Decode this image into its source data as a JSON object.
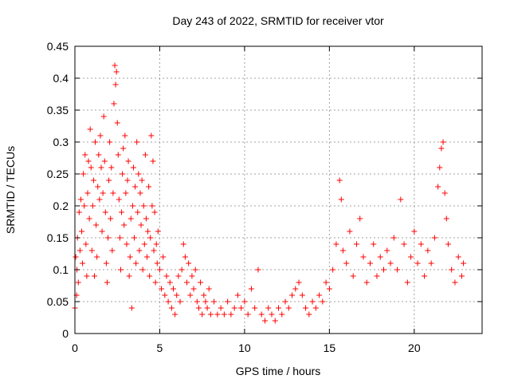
{
  "chart_data": {
    "type": "scatter",
    "title": "Day 243 of 2022, SRMTID for receiver vtor",
    "xlabel": "GPS time / hours",
    "ylabel": "SRMTID / TECUs",
    "xlim": [
      0,
      24
    ],
    "ylim": [
      0,
      0.45
    ],
    "xticks": [
      0,
      5,
      10,
      15,
      20
    ],
    "yticks": [
      0,
      0.05,
      0.1,
      0.15,
      0.2,
      0.25,
      0.3,
      0.35,
      0.4,
      0.45
    ],
    "xtick_labels": [
      "0",
      "5",
      "10",
      "15",
      "20"
    ],
    "ytick_labels": [
      "0",
      "0.05",
      "0.1",
      "0.15",
      "0.2",
      "0.25",
      "0.3",
      "0.35",
      "0.4",
      "0.45"
    ],
    "grid": true,
    "marker": "+",
    "color": "#ff0000",
    "series": [
      {
        "points": [
          [
            0.0,
            0.04
          ],
          [
            0.05,
            0.12
          ],
          [
            0.1,
            0.06
          ],
          [
            0.12,
            0.1
          ],
          [
            0.15,
            0.15
          ],
          [
            0.2,
            0.08
          ],
          [
            0.25,
            0.19
          ],
          [
            0.3,
            0.13
          ],
          [
            0.35,
            0.21
          ],
          [
            0.4,
            0.16
          ],
          [
            0.45,
            0.11
          ],
          [
            0.5,
            0.25
          ],
          [
            0.55,
            0.2
          ],
          [
            0.6,
            0.28
          ],
          [
            0.65,
            0.14
          ],
          [
            0.7,
            0.09
          ],
          [
            0.75,
            0.22
          ],
          [
            0.8,
            0.27
          ],
          [
            0.85,
            0.18
          ],
          [
            0.9,
            0.32
          ],
          [
            0.95,
            0.26
          ],
          [
            1.0,
            0.13
          ],
          [
            1.05,
            0.2
          ],
          [
            1.1,
            0.24
          ],
          [
            1.15,
            0.09
          ],
          [
            1.2,
            0.3
          ],
          [
            1.25,
            0.17
          ],
          [
            1.3,
            0.12
          ],
          [
            1.35,
            0.23
          ],
          [
            1.4,
            0.28
          ],
          [
            1.45,
            0.21
          ],
          [
            1.5,
            0.31
          ],
          [
            1.55,
            0.26
          ],
          [
            1.6,
            0.16
          ],
          [
            1.65,
            0.22
          ],
          [
            1.7,
            0.34
          ],
          [
            1.75,
            0.27
          ],
          [
            1.8,
            0.19
          ],
          [
            1.85,
            0.11
          ],
          [
            1.9,
            0.08
          ],
          [
            1.95,
            0.15
          ],
          [
            2.0,
            0.24
          ],
          [
            2.05,
            0.3
          ],
          [
            2.1,
            0.18
          ],
          [
            2.15,
            0.26
          ],
          [
            2.2,
            0.13
          ],
          [
            2.25,
            0.22
          ],
          [
            2.3,
            0.36
          ],
          [
            2.35,
            0.42
          ],
          [
            2.4,
            0.39
          ],
          [
            2.45,
            0.41
          ],
          [
            2.5,
            0.33
          ],
          [
            2.55,
            0.28
          ],
          [
            2.6,
            0.21
          ],
          [
            2.65,
            0.15
          ],
          [
            2.7,
            0.1
          ],
          [
            2.75,
            0.19
          ],
          [
            2.8,
            0.25
          ],
          [
            2.85,
            0.29
          ],
          [
            2.9,
            0.17
          ],
          [
            2.95,
            0.31
          ],
          [
            3.0,
            0.22
          ],
          [
            3.05,
            0.14
          ],
          [
            3.1,
            0.24
          ],
          [
            3.15,
            0.27
          ],
          [
            3.2,
            0.09
          ],
          [
            3.25,
            0.12
          ],
          [
            3.3,
            0.18
          ],
          [
            3.35,
            0.04
          ],
          [
            3.4,
            0.2
          ],
          [
            3.45,
            0.26
          ],
          [
            3.5,
            0.15
          ],
          [
            3.55,
            0.23
          ],
          [
            3.6,
            0.11
          ],
          [
            3.65,
            0.3
          ],
          [
            3.7,
            0.19
          ],
          [
            3.75,
            0.25
          ],
          [
            3.8,
            0.13
          ],
          [
            3.85,
            0.22
          ],
          [
            3.9,
            0.17
          ],
          [
            3.95,
            0.24
          ],
          [
            4.0,
            0.1
          ],
          [
            4.05,
            0.2
          ],
          [
            4.1,
            0.14
          ],
          [
            4.15,
            0.28
          ],
          [
            4.2,
            0.18
          ],
          [
            4.25,
            0.12
          ],
          [
            4.3,
            0.16
          ],
          [
            4.35,
            0.23
          ],
          [
            4.4,
            0.09
          ],
          [
            4.45,
            0.15
          ],
          [
            4.5,
            0.31
          ],
          [
            4.55,
            0.2
          ],
          [
            4.6,
            0.27
          ],
          [
            4.65,
            0.13
          ],
          [
            4.7,
            0.19
          ],
          [
            4.75,
            0.08
          ],
          [
            4.8,
            0.14
          ],
          [
            4.85,
            0.11
          ],
          [
            4.9,
            0.16
          ],
          [
            5.0,
            0.1
          ],
          [
            5.1,
            0.07
          ],
          [
            5.2,
            0.12
          ],
          [
            5.3,
            0.06
          ],
          [
            5.4,
            0.09
          ],
          [
            5.5,
            0.05
          ],
          [
            5.6,
            0.08
          ],
          [
            5.7,
            0.04
          ],
          [
            5.8,
            0.07
          ],
          [
            5.9,
            0.03
          ],
          [
            6.0,
            0.06
          ],
          [
            6.1,
            0.09
          ],
          [
            6.2,
            0.05
          ],
          [
            6.3,
            0.1
          ],
          [
            6.4,
            0.14
          ],
          [
            6.5,
            0.12
          ],
          [
            6.6,
            0.08
          ],
          [
            6.7,
            0.11
          ],
          [
            6.8,
            0.06
          ],
          [
            6.9,
            0.09
          ],
          [
            7.0,
            0.07
          ],
          [
            7.1,
            0.1
          ],
          [
            7.2,
            0.05
          ],
          [
            7.3,
            0.04
          ],
          [
            7.4,
            0.08
          ],
          [
            7.5,
            0.03
          ],
          [
            7.6,
            0.06
          ],
          [
            7.7,
            0.05
          ],
          [
            7.8,
            0.04
          ],
          [
            7.9,
            0.07
          ],
          [
            8.0,
            0.03
          ],
          [
            8.2,
            0.05
          ],
          [
            8.4,
            0.03
          ],
          [
            8.6,
            0.04
          ],
          [
            8.8,
            0.03
          ],
          [
            9.0,
            0.05
          ],
          [
            9.2,
            0.03
          ],
          [
            9.4,
            0.04
          ],
          [
            9.6,
            0.06
          ],
          [
            9.8,
            0.04
          ],
          [
            10.0,
            0.05
          ],
          [
            10.2,
            0.03
          ],
          [
            10.4,
            0.07
          ],
          [
            10.6,
            0.04
          ],
          [
            10.8,
            0.1
          ],
          [
            11.0,
            0.03
          ],
          [
            11.2,
            0.02
          ],
          [
            11.4,
            0.04
          ],
          [
            11.6,
            0.03
          ],
          [
            11.8,
            0.02
          ],
          [
            12.0,
            0.04
          ],
          [
            12.2,
            0.03
          ],
          [
            12.4,
            0.05
          ],
          [
            12.6,
            0.04
          ],
          [
            12.8,
            0.06
          ],
          [
            13.0,
            0.07
          ],
          [
            13.2,
            0.08
          ],
          [
            13.4,
            0.06
          ],
          [
            13.6,
            0.04
          ],
          [
            13.8,
            0.03
          ],
          [
            14.0,
            0.05
          ],
          [
            14.2,
            0.04
          ],
          [
            14.4,
            0.06
          ],
          [
            14.6,
            0.05
          ],
          [
            14.8,
            0.08
          ],
          [
            15.0,
            0.07
          ],
          [
            15.2,
            0.1
          ],
          [
            15.4,
            0.14
          ],
          [
            15.6,
            0.24
          ],
          [
            15.7,
            0.21
          ],
          [
            15.8,
            0.13
          ],
          [
            16.0,
            0.11
          ],
          [
            16.2,
            0.16
          ],
          [
            16.4,
            0.09
          ],
          [
            16.6,
            0.14
          ],
          [
            16.8,
            0.18
          ],
          [
            17.0,
            0.12
          ],
          [
            17.2,
            0.08
          ],
          [
            17.4,
            0.11
          ],
          [
            17.6,
            0.14
          ],
          [
            17.8,
            0.09
          ],
          [
            18.0,
            0.12
          ],
          [
            18.2,
            0.1
          ],
          [
            18.4,
            0.13
          ],
          [
            18.6,
            0.11
          ],
          [
            18.8,
            0.15
          ],
          [
            19.0,
            0.1
          ],
          [
            19.2,
            0.21
          ],
          [
            19.4,
            0.14
          ],
          [
            19.6,
            0.08
          ],
          [
            19.8,
            0.12
          ],
          [
            20.0,
            0.16
          ],
          [
            20.2,
            0.11
          ],
          [
            20.4,
            0.14
          ],
          [
            20.6,
            0.09
          ],
          [
            20.8,
            0.13
          ],
          [
            21.0,
            0.11
          ],
          [
            21.2,
            0.15
          ],
          [
            21.4,
            0.23
          ],
          [
            21.5,
            0.26
          ],
          [
            21.6,
            0.29
          ],
          [
            21.7,
            0.3
          ],
          [
            21.8,
            0.22
          ],
          [
            21.9,
            0.18
          ],
          [
            22.0,
            0.14
          ],
          [
            22.2,
            0.1
          ],
          [
            22.4,
            0.08
          ],
          [
            22.6,
            0.12
          ],
          [
            22.8,
            0.09
          ],
          [
            22.9,
            0.11
          ]
        ]
      }
    ]
  }
}
